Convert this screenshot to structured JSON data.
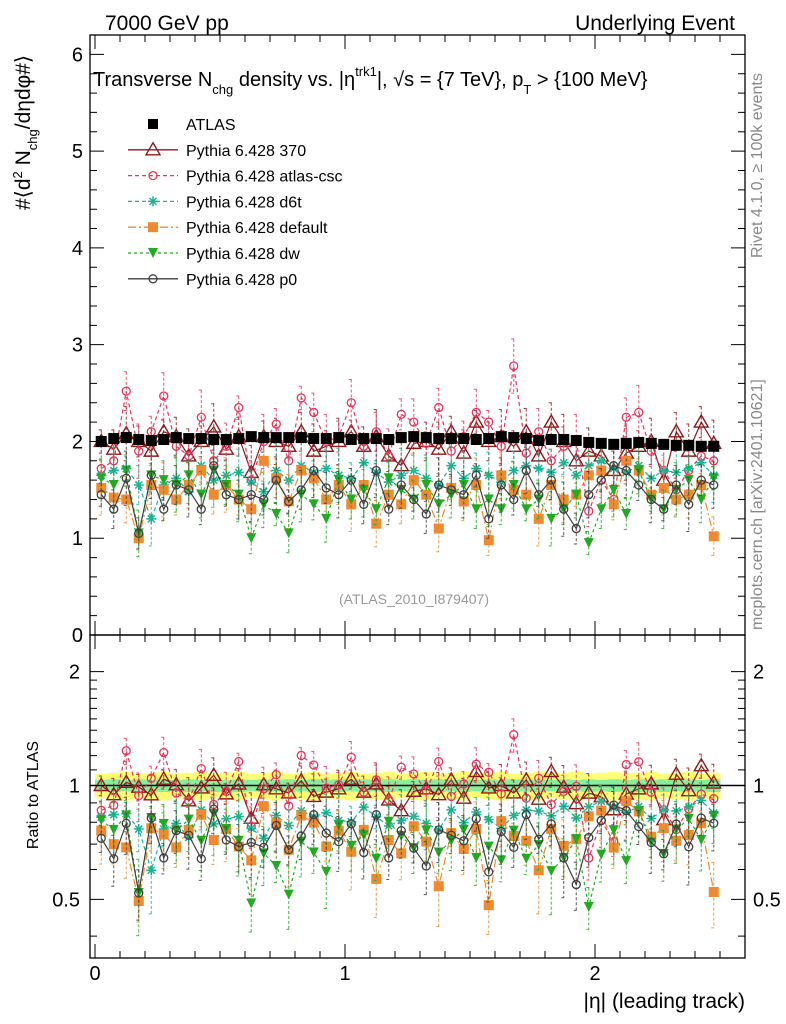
{
  "header": {
    "energy": "7000 GeV pp",
    "category": "Underlying Event"
  },
  "side_labels": {
    "rivet": "Rivet 4.1.0, ≥ 100k events",
    "mcplots": "mcplots.cern.ch [arXiv:2401.10621]"
  },
  "watermark": "(ATLAS_2010_I879407)",
  "chart_data": {
    "type": "scatter",
    "title": "Transverse N_chg density vs. |η^trk1|, √s = {7 TeV}, p_T > {100 MeV}",
    "title_parts": {
      "a": "Transverse N",
      "a_sub": "chg",
      "b": " density vs. |η",
      "b_sup": "trk1",
      "c": "|, ",
      "d": "s = {7 TeV}, p",
      "d_sub": "T",
      "e": " > {100 MeV}"
    },
    "ylabel_parts": {
      "a": "#⟨d",
      "sup": "2",
      "b": " N",
      "sub": "chg",
      "c": "/dηdφ#⟩"
    },
    "ratio_ylabel": "Ratio to ATLAS",
    "xlabel": "|η| (leading track)",
    "xlim": [
      -0.02,
      2.6
    ],
    "ylim": [
      0,
      6.2
    ],
    "ratio_ylim": [
      0.35,
      2.5
    ],
    "x_ticks": [
      "0",
      "1",
      "2"
    ],
    "y_ticks": [
      "0",
      "1",
      "2",
      "3",
      "4",
      "5",
      "6"
    ],
    "ratio_ticks": [
      "0.5",
      "1",
      "2"
    ],
    "x": [
      0.025,
      0.075,
      0.125,
      0.175,
      0.225,
      0.275,
      0.325,
      0.375,
      0.425,
      0.475,
      0.525,
      0.575,
      0.625,
      0.675,
      0.725,
      0.775,
      0.825,
      0.875,
      0.925,
      0.975,
      1.025,
      1.075,
      1.125,
      1.175,
      1.225,
      1.275,
      1.325,
      1.375,
      1.425,
      1.475,
      1.525,
      1.575,
      1.625,
      1.675,
      1.725,
      1.775,
      1.825,
      1.875,
      1.925,
      1.975,
      2.025,
      2.075,
      2.125,
      2.175,
      2.225,
      2.275,
      2.325,
      2.375,
      2.425,
      2.475
    ],
    "reference": {
      "name": "ATLAS",
      "values": [
        2.0,
        2.03,
        2.04,
        2.02,
        2.01,
        2.02,
        2.04,
        2.03,
        2.03,
        2.02,
        2.02,
        2.03,
        2.05,
        2.04,
        2.04,
        2.04,
        2.04,
        2.03,
        2.03,
        2.04,
        2.02,
        2.03,
        2.03,
        2.02,
        2.04,
        2.05,
        2.04,
        2.03,
        2.03,
        2.03,
        2.02,
        2.03,
        2.05,
        2.04,
        2.03,
        2.01,
        2.02,
        2.02,
        2.01,
        1.99,
        1.98,
        1.97,
        1.98,
        1.99,
        1.98,
        1.97,
        1.96,
        1.96,
        1.95,
        1.95
      ],
      "band_inner": 0.035,
      "band_outer": 0.075
    },
    "series": [
      {
        "name": "Pythia 6.428 370",
        "color": "#8b1a1a",
        "marker": "triangle-open",
        "dash": "",
        "values": [
          2.0,
          1.92,
          2.08,
          2.0,
          1.9,
          2.1,
          2.05,
          1.85,
          2.0,
          2.15,
          1.92,
          2.05,
          1.68,
          2.05,
          2.0,
          1.95,
          2.1,
          1.9,
          1.95,
          2.0,
          2.1,
          1.95,
          2.05,
          1.85,
          1.75,
          1.98,
          2.0,
          1.92,
          2.1,
          1.88,
          2.2,
          2.0,
          2.05,
          1.95,
          2.1,
          1.85,
          2.2,
          2.0,
          1.8,
          1.9,
          1.85,
          1.7,
          1.88,
          1.95,
          2.0,
          1.6,
          2.1,
          1.9,
          2.2,
          1.98
        ]
      },
      {
        "name": "Pythia 6.428 atlas-csc",
        "color": "#e8335a",
        "marker": "circle-open",
        "dash": "4,3",
        "values": [
          1.72,
          1.8,
          2.52,
          1.9,
          2.1,
          2.47,
          1.95,
          1.85,
          2.25,
          1.8,
          1.95,
          2.35,
          1.6,
          2.0,
          2.18,
          1.8,
          2.45,
          2.3,
          2.0,
          2.05,
          2.4,
          1.95,
          2.1,
          1.85,
          2.28,
          2.2,
          1.98,
          2.35,
          1.9,
          2.05,
          2.3,
          2.2,
          1.95,
          2.78,
          1.88,
          2.1,
          1.8,
          1.95,
          2.0,
          1.28,
          1.6,
          1.4,
          2.25,
          2.3,
          1.9,
          1.7,
          1.5,
          1.7,
          1.85,
          1.8
        ]
      },
      {
        "name": "Pythia 6.428 d6t",
        "color": "#1ab394",
        "marker": "star",
        "dash": "4,3",
        "values": [
          1.65,
          1.7,
          1.72,
          1.55,
          1.2,
          1.55,
          1.62,
          1.48,
          1.75,
          1.6,
          1.65,
          1.68,
          1.58,
          1.48,
          1.7,
          1.6,
          1.75,
          1.68,
          1.72,
          1.65,
          1.62,
          1.78,
          1.68,
          1.58,
          1.65,
          1.7,
          1.62,
          1.55,
          1.75,
          1.62,
          1.72,
          1.65,
          1.58,
          1.7,
          1.75,
          1.72,
          1.68,
          1.78,
          1.65,
          1.75,
          1.8,
          1.72,
          1.68,
          1.75,
          1.62,
          1.7,
          1.68,
          1.72,
          1.78,
          1.65
        ]
      },
      {
        "name": "Pythia 6.428 default",
        "color": "#f08a30",
        "marker": "square",
        "dash": "8,3,2,3",
        "values": [
          1.52,
          1.42,
          1.4,
          1.0,
          1.55,
          1.5,
          1.4,
          1.55,
          1.7,
          1.45,
          1.55,
          1.4,
          1.3,
          1.8,
          1.62,
          1.38,
          1.7,
          1.62,
          1.4,
          1.55,
          1.35,
          1.55,
          1.15,
          1.45,
          1.35,
          1.6,
          1.45,
          1.1,
          1.52,
          1.38,
          1.55,
          0.98,
          1.65,
          1.5,
          1.45,
          1.2,
          1.55,
          1.4,
          1.45,
          1.65,
          1.7,
          1.35,
          1.8,
          1.7,
          1.45,
          1.52,
          1.4,
          1.45,
          1.55,
          1.02
        ]
      },
      {
        "name": "Pythia 6.428 dw",
        "color": "#22aa22",
        "marker": "triangle-down",
        "dash": "3,3",
        "values": [
          1.62,
          1.55,
          1.7,
          1.05,
          1.65,
          1.6,
          1.55,
          1.65,
          1.45,
          1.7,
          1.55,
          1.45,
          1.0,
          1.35,
          1.25,
          1.05,
          1.45,
          1.35,
          1.2,
          1.6,
          1.4,
          1.5,
          1.3,
          1.62,
          1.5,
          1.4,
          1.55,
          1.35,
          1.45,
          1.55,
          1.3,
          1.4,
          1.3,
          1.55,
          1.3,
          1.4,
          1.2,
          1.3,
          1.45,
          0.95,
          1.3,
          1.5,
          1.25,
          1.7,
          1.4,
          1.3,
          1.5,
          1.6,
          1.4,
          1.62
        ]
      },
      {
        "name": "Pythia 6.428 p0",
        "color": "#404040",
        "marker": "circle-open",
        "dash": "",
        "values": [
          1.45,
          1.3,
          1.62,
          1.05,
          1.65,
          1.3,
          1.55,
          1.5,
          1.3,
          1.75,
          1.45,
          1.4,
          1.45,
          1.4,
          1.6,
          1.38,
          1.5,
          1.7,
          1.52,
          1.45,
          1.6,
          1.35,
          1.7,
          1.3,
          1.55,
          1.4,
          1.25,
          1.55,
          1.5,
          1.45,
          1.65,
          1.2,
          1.55,
          1.4,
          1.7,
          1.45,
          1.6,
          1.3,
          1.1,
          1.45,
          1.6,
          1.75,
          1.7,
          1.55,
          1.4,
          1.3,
          1.55,
          1.35,
          1.6,
          1.55
        ]
      }
    ]
  }
}
